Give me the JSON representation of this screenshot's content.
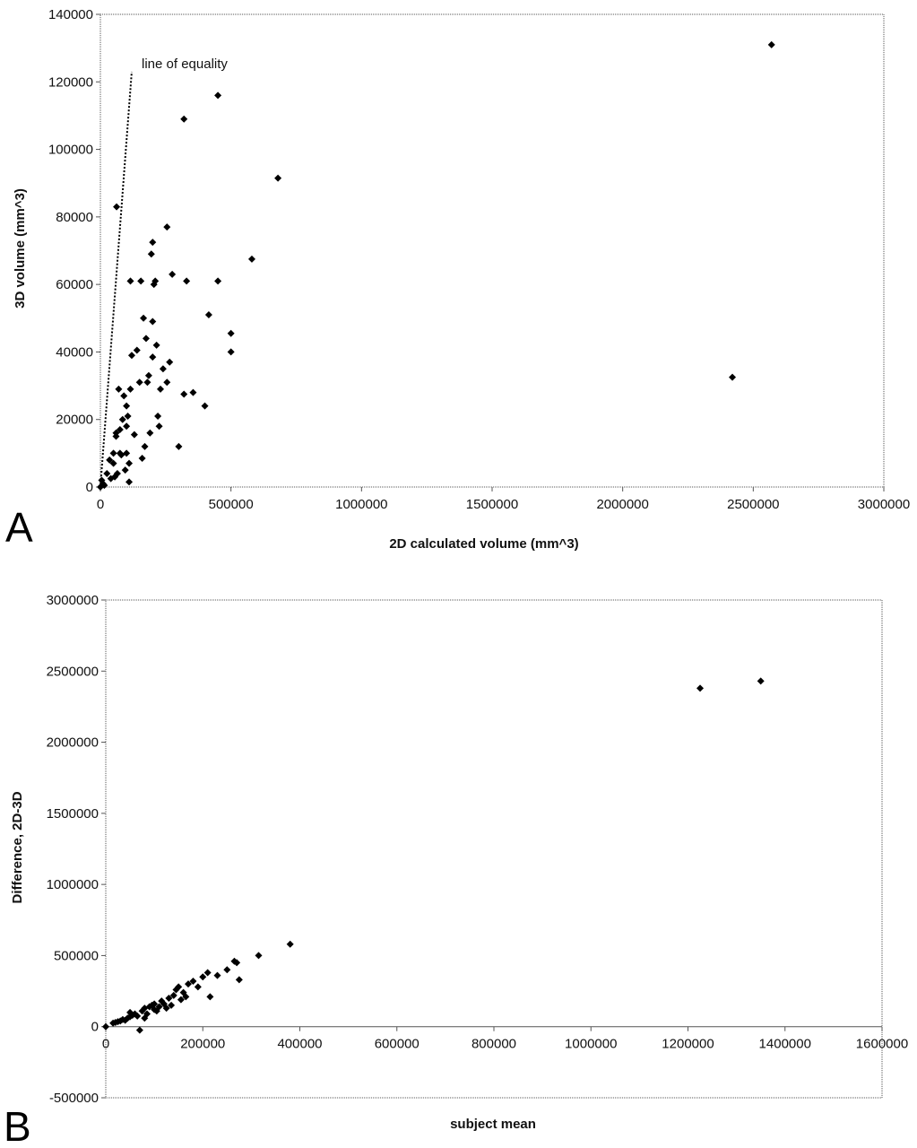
{
  "chart_data": [
    {
      "type": "scatter",
      "panel_label": "A",
      "xlabel": "2D calculated volume (mm^3)",
      "ylabel": "3D volume (mm^3)",
      "xlim": [
        0,
        3000000
      ],
      "ylim": [
        0,
        140000
      ],
      "xticks": [
        0,
        500000,
        1000000,
        1500000,
        2000000,
        2500000,
        3000000
      ],
      "yticks": [
        0,
        20000,
        40000,
        60000,
        80000,
        100000,
        120000,
        140000
      ],
      "grid": false,
      "annotation": "line of equality",
      "reference_line": {
        "x": [
          0,
          120000
        ],
        "y": [
          0,
          123000
        ]
      },
      "points": [
        [
          0,
          0
        ],
        [
          5000,
          2000
        ],
        [
          10000,
          1000
        ],
        [
          15000,
          500
        ],
        [
          25000,
          4000
        ],
        [
          35000,
          8000
        ],
        [
          40000,
          2500
        ],
        [
          50000,
          10000
        ],
        [
          50000,
          7000
        ],
        [
          55000,
          3000
        ],
        [
          60000,
          16000
        ],
        [
          60000,
          15000
        ],
        [
          62000,
          83000
        ],
        [
          65000,
          4000
        ],
        [
          70000,
          29000
        ],
        [
          75000,
          10000
        ],
        [
          75000,
          17000
        ],
        [
          80000,
          9500
        ],
        [
          85000,
          20000
        ],
        [
          90000,
          27000
        ],
        [
          95000,
          5000
        ],
        [
          100000,
          10000
        ],
        [
          100000,
          18000
        ],
        [
          100000,
          24000
        ],
        [
          105000,
          21000
        ],
        [
          110000,
          7000
        ],
        [
          110000,
          1500
        ],
        [
          115000,
          61000
        ],
        [
          115000,
          29000
        ],
        [
          120000,
          39000
        ],
        [
          130000,
          15500
        ],
        [
          140000,
          40500
        ],
        [
          150000,
          31000
        ],
        [
          155000,
          61000
        ],
        [
          160000,
          8500
        ],
        [
          165000,
          50000
        ],
        [
          170000,
          12000
        ],
        [
          175000,
          44000
        ],
        [
          180000,
          31000
        ],
        [
          185000,
          33000
        ],
        [
          190000,
          16000
        ],
        [
          195000,
          69000
        ],
        [
          200000,
          72500
        ],
        [
          200000,
          49000
        ],
        [
          200000,
          38500
        ],
        [
          205000,
          60000
        ],
        [
          210000,
          61000
        ],
        [
          215000,
          42000
        ],
        [
          220000,
          21000
        ],
        [
          225000,
          18000
        ],
        [
          230000,
          29000
        ],
        [
          240000,
          35000
        ],
        [
          255000,
          77000
        ],
        [
          255000,
          31000
        ],
        [
          265000,
          37000
        ],
        [
          275000,
          63000
        ],
        [
          300000,
          12000
        ],
        [
          320000,
          109000
        ],
        [
          320000,
          27500
        ],
        [
          330000,
          61000
        ],
        [
          355000,
          28000
        ],
        [
          400000,
          24000
        ],
        [
          415000,
          51000
        ],
        [
          450000,
          116000
        ],
        [
          450000,
          61000
        ],
        [
          500000,
          45500
        ],
        [
          500000,
          40000
        ],
        [
          580000,
          67500
        ],
        [
          680000,
          91500
        ],
        [
          2420000,
          32500
        ],
        [
          2570000,
          131000
        ]
      ]
    },
    {
      "type": "scatter",
      "panel_label": "B",
      "xlabel": "subject mean",
      "ylabel": "Difference, 2D-3D",
      "xlim": [
        0,
        1600000
      ],
      "ylim": [
        -500000,
        3000000
      ],
      "xticks": [
        0,
        200000,
        400000,
        600000,
        800000,
        1000000,
        1200000,
        1400000,
        1600000
      ],
      "yticks": [
        -500000,
        0,
        500000,
        1000000,
        1500000,
        2000000,
        2500000,
        3000000
      ],
      "grid": false,
      "points": [
        [
          0,
          0
        ],
        [
          15000,
          25000
        ],
        [
          20000,
          30000
        ],
        [
          25000,
          35000
        ],
        [
          30000,
          40000
        ],
        [
          35000,
          50000
        ],
        [
          40000,
          45000
        ],
        [
          45000,
          60000
        ],
        [
          50000,
          70000
        ],
        [
          50000,
          100000
        ],
        [
          55000,
          80000
        ],
        [
          60000,
          90000
        ],
        [
          65000,
          75000
        ],
        [
          70000,
          -25000
        ],
        [
          75000,
          110000
        ],
        [
          80000,
          60000
        ],
        [
          80000,
          130000
        ],
        [
          85000,
          90000
        ],
        [
          90000,
          140000
        ],
        [
          95000,
          150000
        ],
        [
          100000,
          120000
        ],
        [
          100000,
          160000
        ],
        [
          105000,
          110000
        ],
        [
          110000,
          140000
        ],
        [
          115000,
          180000
        ],
        [
          120000,
          160000
        ],
        [
          125000,
          130000
        ],
        [
          130000,
          200000
        ],
        [
          135000,
          150000
        ],
        [
          140000,
          220000
        ],
        [
          145000,
          260000
        ],
        [
          150000,
          280000
        ],
        [
          155000,
          190000
        ],
        [
          160000,
          240000
        ],
        [
          165000,
          210000
        ],
        [
          170000,
          300000
        ],
        [
          180000,
          320000
        ],
        [
          190000,
          280000
        ],
        [
          200000,
          350000
        ],
        [
          210000,
          380000
        ],
        [
          215000,
          210000
        ],
        [
          230000,
          360000
        ],
        [
          250000,
          400000
        ],
        [
          265000,
          460000
        ],
        [
          270000,
          450000
        ],
        [
          275000,
          330000
        ],
        [
          315000,
          500000
        ],
        [
          380000,
          580000
        ],
        [
          1225000,
          2380000
        ],
        [
          1350000,
          2430000
        ]
      ]
    }
  ]
}
